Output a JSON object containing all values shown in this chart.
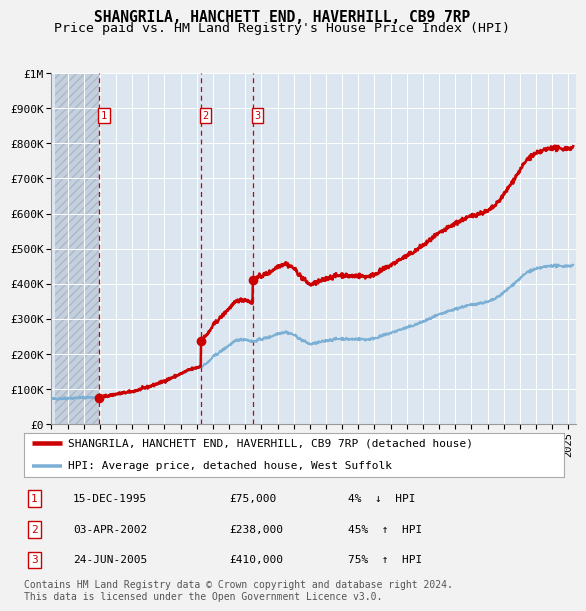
{
  "title": "SHANGRILA, HANCHETT END, HAVERHILL, CB9 7RP",
  "subtitle": "Price paid vs. HM Land Registry's House Price Index (HPI)",
  "ylabel_ticks": [
    "£0",
    "£100K",
    "£200K",
    "£300K",
    "£400K",
    "£500K",
    "£600K",
    "£700K",
    "£800K",
    "£900K",
    "£1M"
  ],
  "ytick_values": [
    0,
    100000,
    200000,
    300000,
    400000,
    500000,
    600000,
    700000,
    800000,
    900000,
    1000000
  ],
  "ylim": [
    0,
    1000000
  ],
  "xlim_start": 1993.25,
  "xlim_end": 2025.5,
  "sales": [
    {
      "num": 1,
      "date": "15-DEC-1995",
      "year": 1995.958,
      "price": 75000,
      "pct": "4%",
      "dir": "↓"
    },
    {
      "num": 2,
      "date": "03-APR-2002",
      "year": 2002.25,
      "price": 238000,
      "pct": "45%",
      "dir": "↑"
    },
    {
      "num": 3,
      "date": "24-JUN-2005",
      "year": 2005.47,
      "price": 410000,
      "pct": "75%",
      "dir": "↑"
    }
  ],
  "legend_entries": [
    {
      "label": "SHANGRILA, HANCHETT END, HAVERHILL, CB9 7RP (detached house)",
      "color": "#cc0000",
      "lw": 1.8
    },
    {
      "label": "HPI: Average price, detached house, West Suffolk",
      "color": "#7bafd4",
      "lw": 1.4
    }
  ],
  "footnote": "Contains HM Land Registry data © Crown copyright and database right 2024.\nThis data is licensed under the Open Government Licence v3.0.",
  "fig_bg": "#f2f2f2",
  "plot_bg": "#dce6f1",
  "grid_color": "#ffffff",
  "title_fontsize": 10.5,
  "subtitle_fontsize": 9.5,
  "tick_fontsize": 8,
  "legend_fontsize": 8,
  "footnote_fontsize": 7,
  "table_fontsize": 8
}
